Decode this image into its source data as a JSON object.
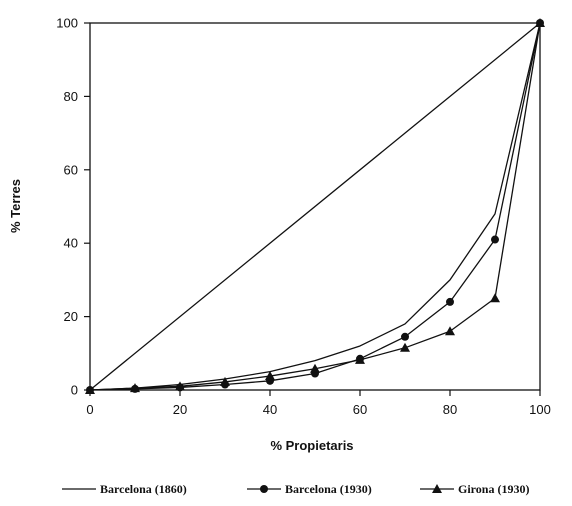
{
  "chart_data": {
    "type": "line",
    "title": "",
    "xlabel": "% Propietaris",
    "ylabel": "% Terres",
    "xlim": [
      0,
      100
    ],
    "ylim": [
      0,
      100
    ],
    "xticks": [
      "0",
      "20",
      "40",
      "60",
      "80",
      "100"
    ],
    "yticks": [
      "0",
      "20",
      "40",
      "60",
      "80",
      "100"
    ],
    "grid": false,
    "legend_position": "bottom",
    "series": [
      {
        "name": "Barcelona (1860)",
        "marker": "none",
        "color": "#111111",
        "x": [
          0,
          10,
          20,
          30,
          40,
          50,
          60,
          70,
          80,
          90,
          100
        ],
        "y": [
          0,
          0.5,
          1.5,
          3,
          5,
          8,
          12,
          18,
          30,
          48,
          100
        ]
      },
      {
        "name": "Barcelona (1930)",
        "marker": "circle",
        "color": "#111111",
        "x": [
          0,
          10,
          20,
          30,
          40,
          50,
          60,
          70,
          80,
          90,
          100
        ],
        "y": [
          0,
          0.3,
          0.7,
          1.5,
          2.5,
          4.5,
          8.5,
          14.5,
          24,
          41,
          100
        ]
      },
      {
        "name": "Girona (1930)",
        "marker": "triangle",
        "color": "#111111",
        "x": [
          0,
          10,
          20,
          30,
          40,
          50,
          60,
          70,
          80,
          90,
          100
        ],
        "y": [
          0,
          0.5,
          1,
          2.2,
          3.8,
          5.8,
          8.2,
          11.5,
          16,
          25,
          100
        ]
      },
      {
        "name": "",
        "marker": "none",
        "color": "#111111",
        "x": [
          0,
          100
        ],
        "y": [
          0,
          100
        ]
      }
    ]
  }
}
